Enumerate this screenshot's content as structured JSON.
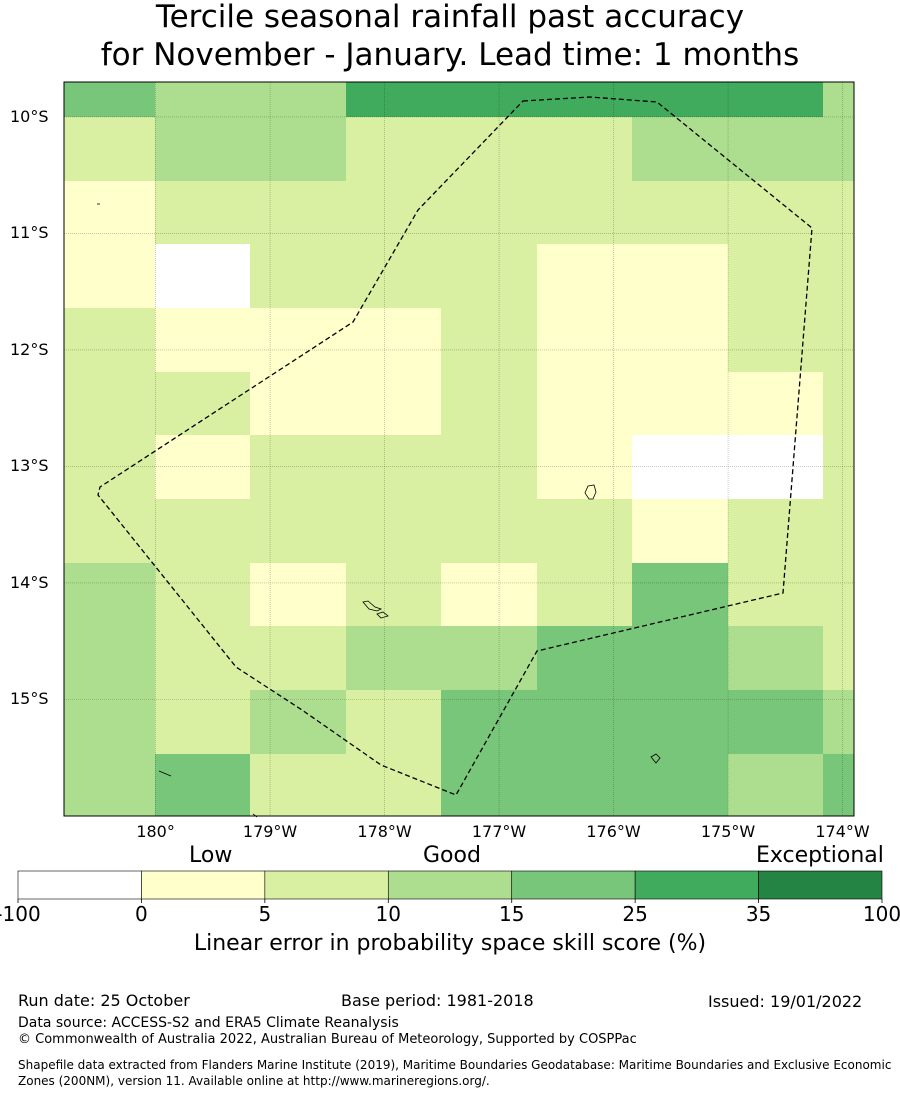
{
  "title_line1": "Tercile seasonal rainfall past accuracy",
  "title_line2": "for November - January. Lead time: 1 months",
  "map": {
    "lon_range": [
      -180.8,
      -173.9
    ],
    "lat_range": [
      -16.0,
      -9.7
    ],
    "lat_ticks": [
      {
        "value": -10,
        "label": "10°S"
      },
      {
        "value": -11,
        "label": "11°S"
      },
      {
        "value": -12,
        "label": "12°S"
      },
      {
        "value": -13,
        "label": "13°S"
      },
      {
        "value": -14,
        "label": "14°S"
      },
      {
        "value": -15,
        "label": "15°S"
      }
    ],
    "lon_ticks": [
      {
        "value": -180,
        "label": "180°"
      },
      {
        "value": -179,
        "label": "179°W"
      },
      {
        "value": -178,
        "label": "178°W"
      },
      {
        "value": -177,
        "label": "177°W"
      },
      {
        "value": -176,
        "label": "176°W"
      },
      {
        "value": -175,
        "label": "175°W"
      },
      {
        "value": -174,
        "label": "174°W"
      }
    ],
    "grid_category_rows": [
      [
        4,
        3,
        3,
        5,
        5,
        5,
        5,
        5,
        3
      ],
      [
        2,
        3,
        3,
        2,
        2,
        2,
        3,
        3,
        3
      ],
      [
        1,
        2,
        2,
        2,
        2,
        2,
        2,
        2,
        2
      ],
      [
        1,
        0,
        2,
        2,
        2,
        1,
        1,
        2,
        2
      ],
      [
        2,
        1,
        1,
        1,
        2,
        1,
        1,
        2,
        2
      ],
      [
        2,
        2,
        1,
        1,
        2,
        1,
        1,
        1,
        2
      ],
      [
        2,
        1,
        2,
        2,
        2,
        1,
        0,
        0,
        2
      ],
      [
        2,
        2,
        2,
        2,
        2,
        2,
        1,
        2,
        2
      ],
      [
        3,
        2,
        1,
        2,
        1,
        2,
        4,
        2,
        2
      ],
      [
        3,
        2,
        2,
        3,
        3,
        4,
        4,
        3,
        2
      ],
      [
        3,
        2,
        3,
        2,
        4,
        4,
        4,
        4,
        3
      ],
      [
        3,
        4,
        2,
        2,
        4,
        4,
        4,
        3,
        4
      ]
    ],
    "eez_color": "#000000",
    "land_color": "#000000"
  },
  "legend": {
    "words": [
      "Low",
      "Good",
      "Exceptional"
    ],
    "bins": [
      {
        "from": "-100",
        "to": "0",
        "color": "#ffffff"
      },
      {
        "from": "0",
        "to": "5",
        "color": "#ffffcc"
      },
      {
        "from": "5",
        "to": "10",
        "color": "#d9f0a3"
      },
      {
        "from": "10",
        "to": "15",
        "color": "#addd8e"
      },
      {
        "from": "15",
        "to": "25",
        "color": "#78c679"
      },
      {
        "from": "25",
        "to": "35",
        "color": "#41ab5d"
      },
      {
        "from": "35",
        "to": "100",
        "color": "#238443"
      }
    ],
    "ticks": [
      "-100",
      "0",
      "5",
      "10",
      "15",
      "25",
      "35",
      "100"
    ],
    "label": "Linear error in probability space skill score (%)"
  },
  "footer": {
    "run_date": "Run date: 25 October",
    "base_period": "Base period: 1981-2018",
    "issued": "Issued: 19/01/2022",
    "data_source": "Data source: ACCESS-S2 and ERA5 Climate Reanalysis",
    "copyright": "© Commonwealth of Australia 2022, Australian Bureau of Meteorology, Supported by COSPPac",
    "shapefile": "Shapefile data extracted from Flanders Marine Institute (2019), Maritime Boundaries Geodatabase: Maritime Boundaries and Exclusive Economic Zones (200NM), version 11. Available online at http://www.marineregions.org/."
  }
}
